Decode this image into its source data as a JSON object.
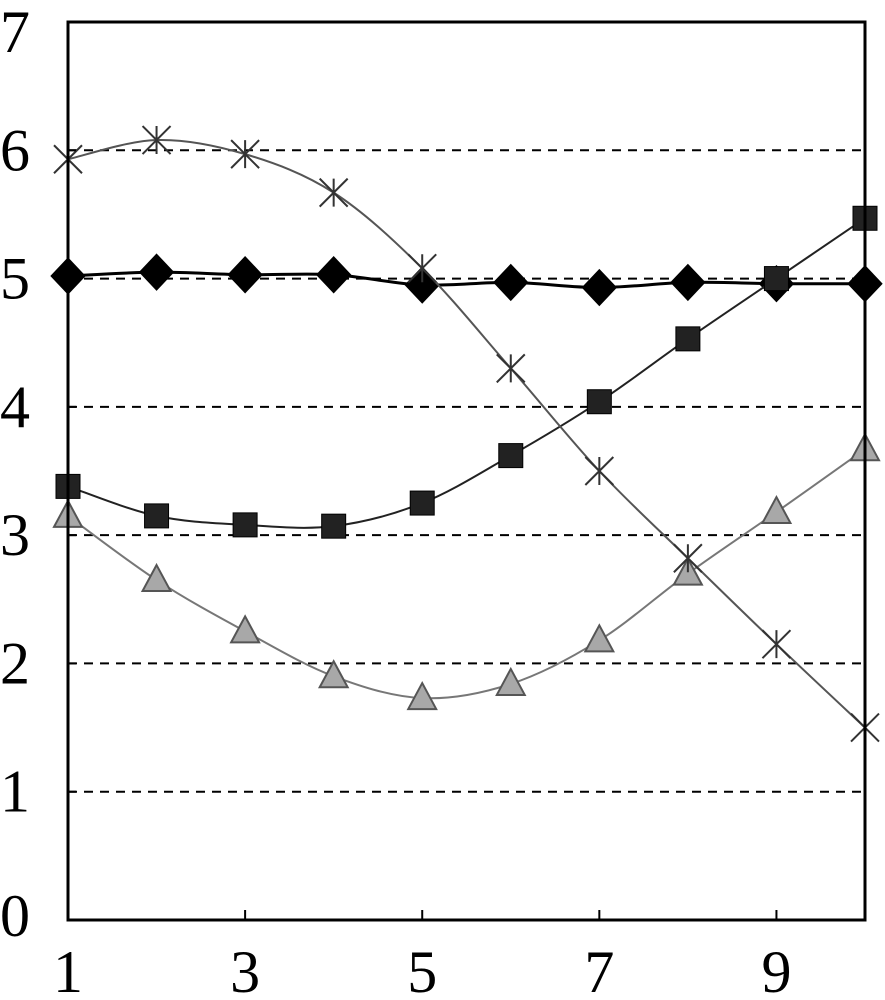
{
  "chart_data": {
    "type": "line",
    "title": "",
    "xlabel": "",
    "ylabel": "",
    "xlim": [
      1,
      10
    ],
    "ylim": [
      0,
      7
    ],
    "x_ticks": [
      "1",
      "3",
      "5",
      "7",
      "9"
    ],
    "x_tick_values": [
      1,
      3,
      5,
      7,
      9
    ],
    "y_ticks": [
      "0",
      "1",
      "2",
      "3",
      "4",
      "5",
      "6",
      "7"
    ],
    "y_tick_values": [
      0,
      1,
      2,
      3,
      4,
      5,
      6,
      7
    ],
    "grid": "horizontal-dashed",
    "legend": "none",
    "x": [
      1,
      2,
      3,
      4,
      5,
      6,
      7,
      8,
      9,
      10
    ],
    "series": [
      {
        "marker": "diamond",
        "line_color": "#000000",
        "marker_color": "#000000",
        "values": [
          5.02,
          5.05,
          5.03,
          5.03,
          4.95,
          4.97,
          4.93,
          4.97,
          4.96,
          4.96
        ]
      },
      {
        "marker": "square",
        "line_color": "#222222",
        "marker_color": "#222222",
        "values": [
          3.38,
          3.15,
          3.08,
          3.07,
          3.25,
          3.62,
          4.04,
          4.53,
          5.0,
          5.47
        ]
      },
      {
        "marker": "triangle",
        "line_color": "#777777",
        "marker_color": "#a8a8a8",
        "values": [
          3.15,
          2.65,
          2.25,
          1.9,
          1.73,
          1.84,
          2.18,
          2.7,
          3.18,
          3.67
        ]
      },
      {
        "marker": "star",
        "line_color": "#555555",
        "marker_color": "#333333",
        "values": [
          5.93,
          6.08,
          5.97,
          5.67,
          5.08,
          4.3,
          3.5,
          2.82,
          2.15,
          1.5
        ]
      }
    ]
  }
}
